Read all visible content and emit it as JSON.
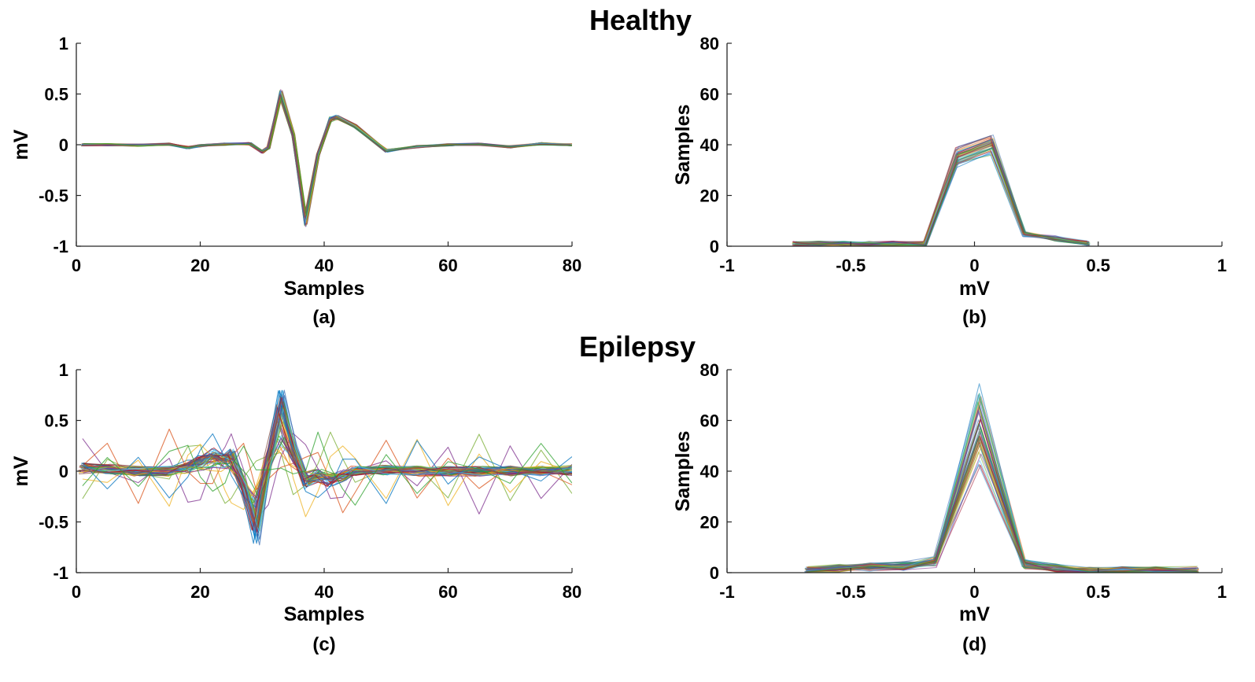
{
  "sections": {
    "healthy": "Healthy",
    "epilepsy": "Epilepsy"
  },
  "palette": [
    "#0072BD",
    "#D95319",
    "#EDB120",
    "#7E2F8E",
    "#77AC30",
    "#4DBEEE",
    "#A2142F",
    "#3b6fb6",
    "#8c564b",
    "#2ca02c"
  ],
  "chart_data": [
    {
      "id": "a",
      "type": "line",
      "section": "Healthy",
      "label": "(a)",
      "xlabel": "Samples",
      "ylabel": "mV",
      "xlim": [
        0,
        80
      ],
      "ylim": [
        -1,
        1
      ],
      "xticks": [
        0,
        20,
        40,
        60,
        80
      ],
      "yticks": [
        -1,
        -0.5,
        0,
        0.5,
        1
      ],
      "xtick_labels": [
        "0",
        "20",
        "40",
        "60",
        "80"
      ],
      "ytick_labels": [
        "-1",
        "-0.5",
        "0",
        "0.5",
        "1"
      ],
      "grid": false,
      "series_count": 40,
      "x": [
        1,
        5,
        10,
        15,
        18,
        20,
        24,
        28,
        30,
        31,
        33,
        35,
        37,
        39,
        41,
        42,
        45,
        50,
        55,
        60,
        65,
        70,
        75,
        80
      ],
      "template": [
        0,
        0,
        -0.005,
        0.005,
        -0.03,
        -0.01,
        0.005,
        0.01,
        -0.07,
        -0.03,
        0.5,
        0.1,
        -0.75,
        -0.1,
        0.25,
        0.27,
        0.18,
        -0.06,
        -0.02,
        0,
        0.005,
        -0.02,
        0.01,
        0
      ]
    },
    {
      "id": "b",
      "type": "line",
      "section": "Healthy",
      "label": "(b)",
      "xlabel": "mV",
      "ylabel": "Samples",
      "xlim": [
        -1,
        1
      ],
      "ylim": [
        0,
        80
      ],
      "xticks": [
        -1,
        -0.5,
        0,
        0.5,
        1
      ],
      "yticks": [
        0,
        20,
        40,
        60,
        80
      ],
      "xtick_labels": [
        "-1",
        "-0.5",
        "0",
        "0.5",
        "1"
      ],
      "ytick_labels": [
        "0",
        "20",
        "40",
        "60",
        "80"
      ],
      "grid": false,
      "series_count": 40,
      "x": [
        -0.73,
        -0.63,
        -0.53,
        -0.43,
        -0.33,
        -0.2,
        -0.07,
        0.07,
        0.2,
        0.33,
        0.46
      ],
      "template": [
        1,
        1,
        1,
        1,
        1,
        1,
        36,
        41,
        5,
        3,
        1
      ]
    },
    {
      "id": "c",
      "type": "line",
      "section": "Epilepsy",
      "label": "(c)",
      "xlabel": "Samples",
      "ylabel": "mV",
      "xlim": [
        0,
        80
      ],
      "ylim": [
        -1,
        1
      ],
      "xticks": [
        0,
        20,
        40,
        60,
        80
      ],
      "yticks": [
        -1,
        -0.5,
        0,
        0.5,
        1
      ],
      "xtick_labels": [
        "0",
        "20",
        "40",
        "60",
        "80"
      ],
      "ytick_labels": [
        "-1",
        "-0.5",
        "0",
        "0.5",
        "1"
      ],
      "grid": false,
      "series_count": 50,
      "x": [
        1,
        5,
        10,
        15,
        18,
        20,
        22,
        24,
        25,
        27,
        29,
        31,
        33,
        35,
        37,
        39,
        41,
        43,
        45,
        50,
        55,
        60,
        65,
        70,
        75,
        80
      ],
      "template": [
        0.03,
        0.02,
        0,
        0,
        0.05,
        0.1,
        0.15,
        0.12,
        0.15,
        -0.15,
        -0.55,
        0.1,
        0.62,
        0.2,
        -0.1,
        -0.05,
        -0.1,
        -0.05,
        0,
        0.01,
        0,
        0,
        0,
        0,
        0,
        0.01
      ]
    },
    {
      "id": "d",
      "type": "line",
      "section": "Epilepsy",
      "label": "(d)",
      "xlabel": "mV",
      "ylabel": "Samples",
      "xlim": [
        -1,
        1
      ],
      "ylim": [
        0,
        80
      ],
      "xticks": [
        -1,
        -0.5,
        0,
        0.5,
        1
      ],
      "yticks": [
        0,
        20,
        40,
        60,
        80
      ],
      "xtick_labels": [
        "-1",
        "-0.5",
        "0",
        "0.5",
        "1"
      ],
      "ytick_labels": [
        "0",
        "20",
        "40",
        "60",
        "80"
      ],
      "grid": false,
      "series_count": 50,
      "x": [
        -0.68,
        -0.55,
        -0.42,
        -0.29,
        -0.16,
        0.02,
        0.2,
        0.33,
        0.46,
        0.6,
        0.73,
        0.9
      ],
      "template": [
        1,
        2,
        3,
        3,
        5,
        70,
        4,
        2,
        1,
        1,
        1,
        1
      ]
    }
  ]
}
